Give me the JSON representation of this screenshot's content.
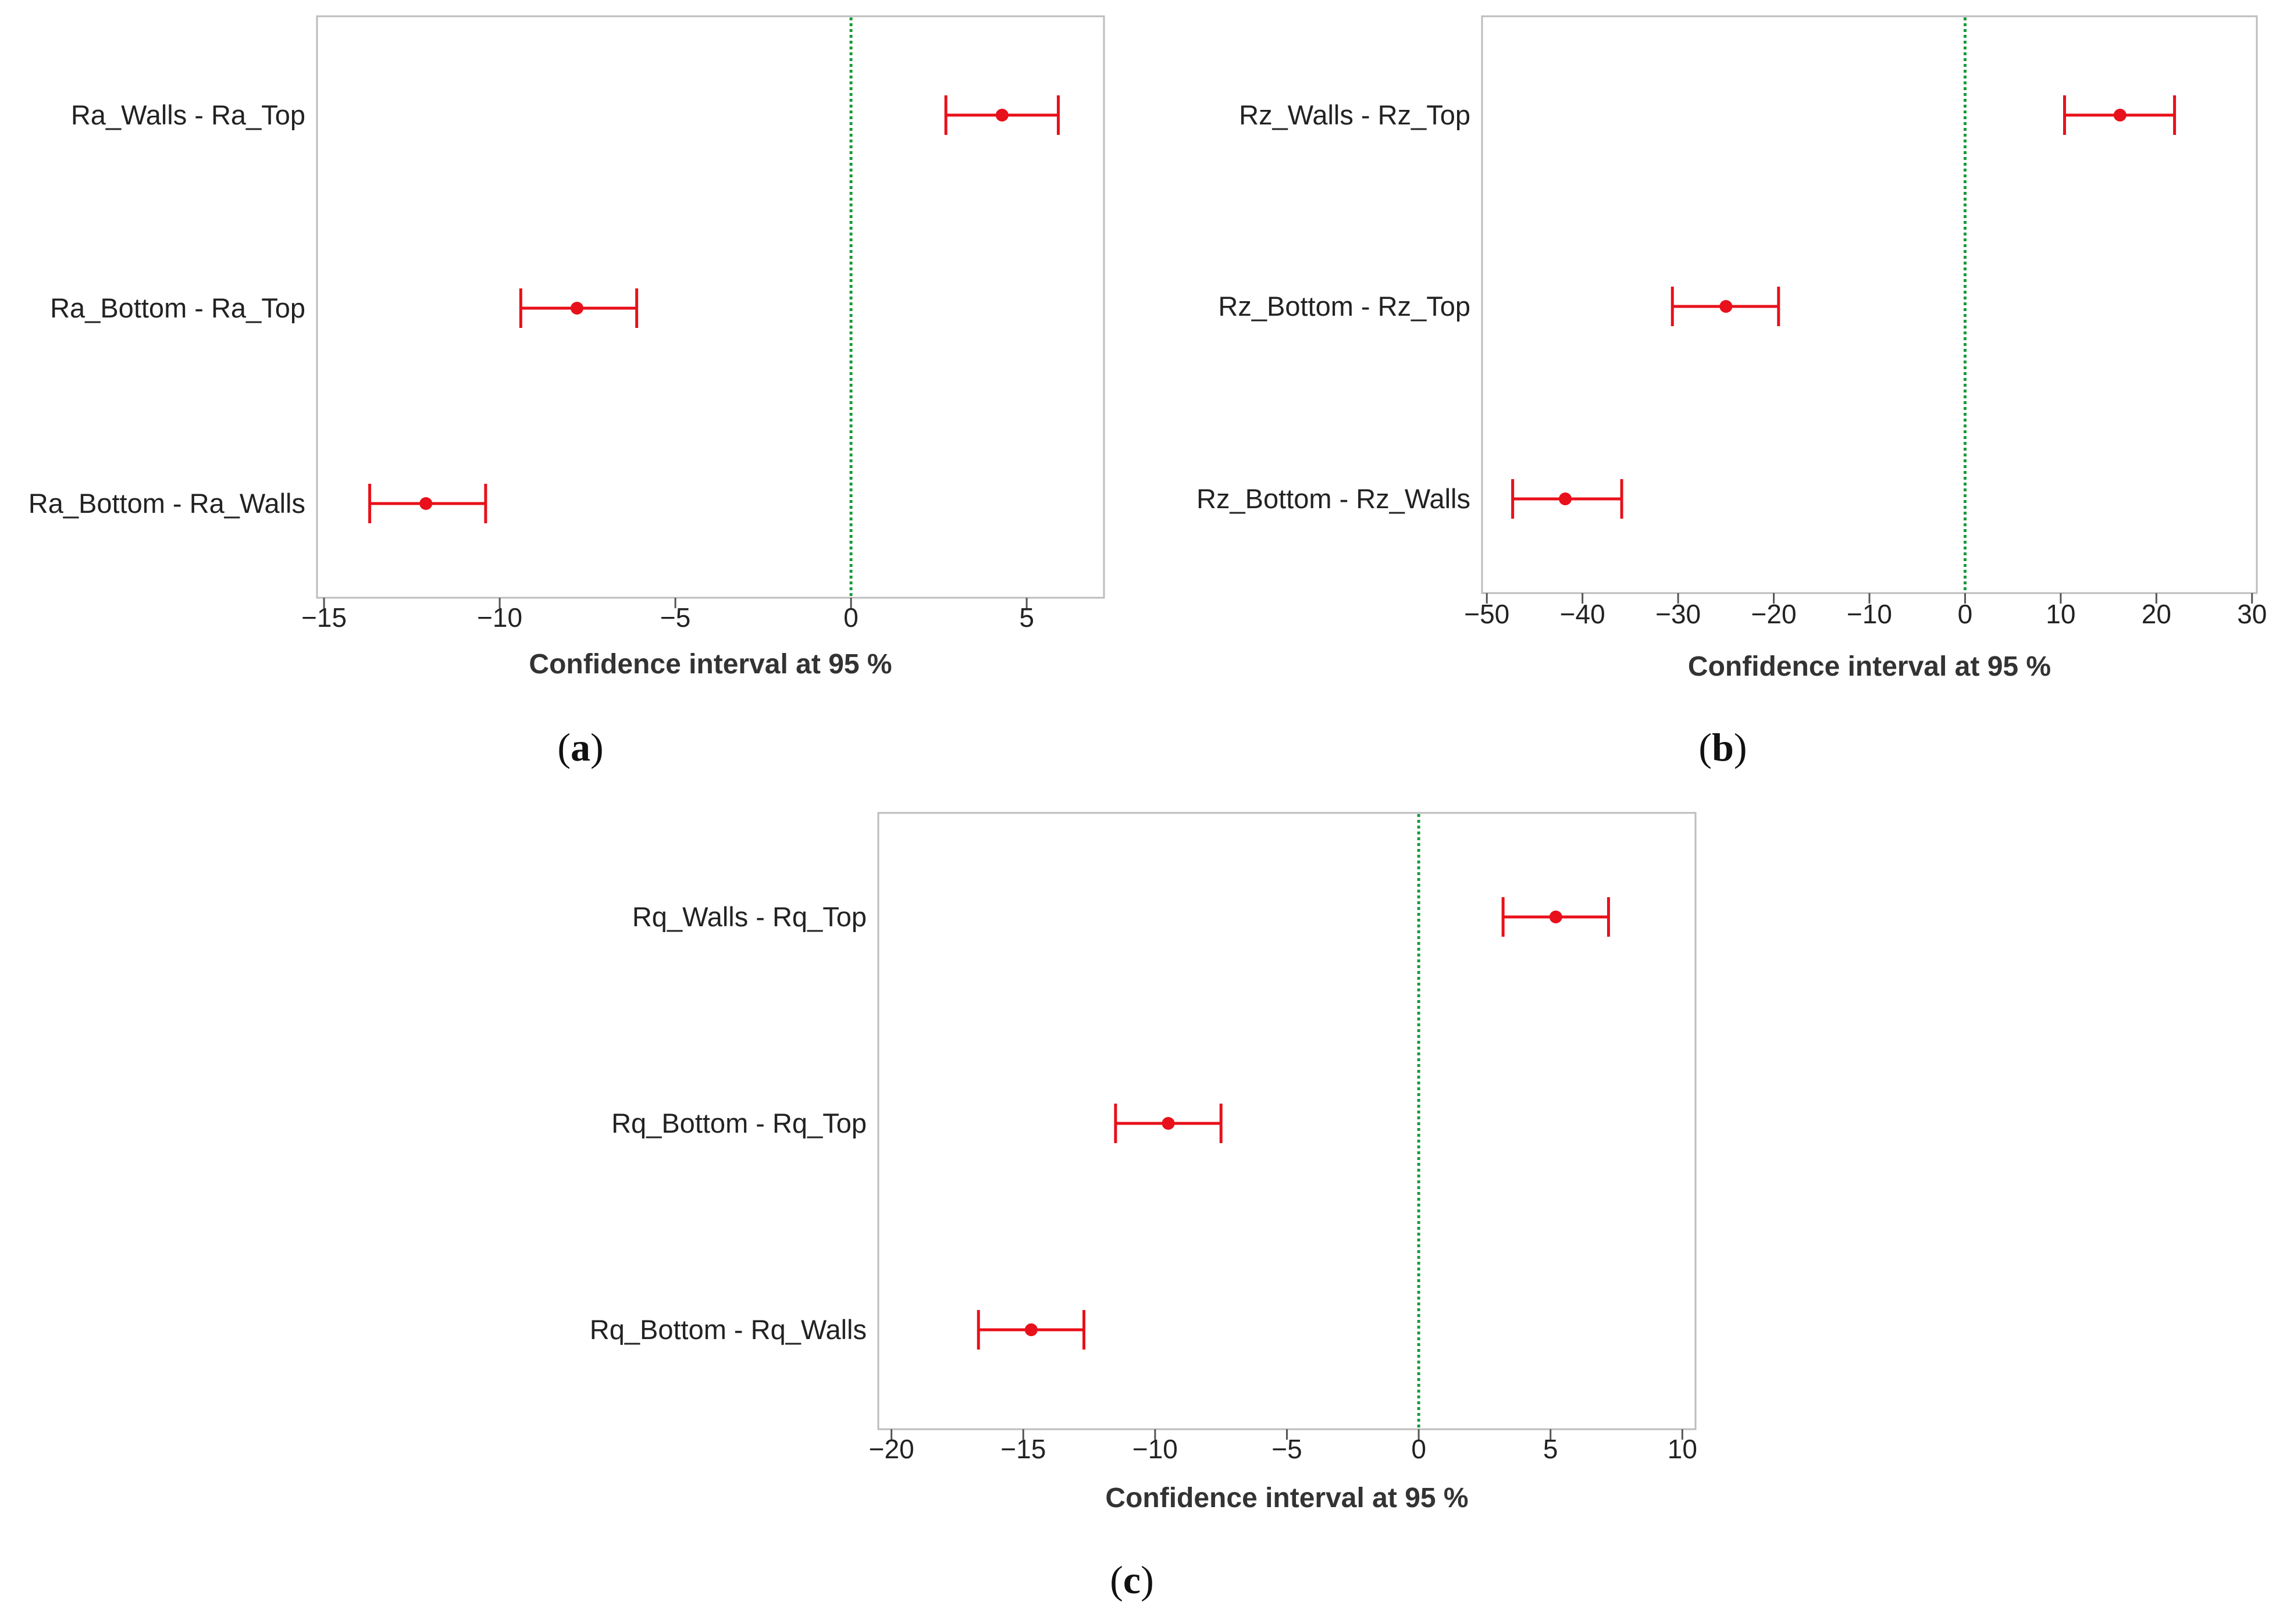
{
  "colors": {
    "interval": "#e8101a",
    "reference_line": "#1a9a3a",
    "frame": "#bdbdbd",
    "text": "#222222",
    "axis_title": "#333333"
  },
  "chart_data": [
    {
      "type": "interval",
      "panel_label": "a",
      "xlabel": "Confidence interval at 95 %",
      "xlim": [
        -15.2,
        7.2
      ],
      "xticks": [
        -15,
        -10,
        -5,
        0,
        5
      ],
      "reference_x": 0,
      "categories": [
        "Ra_Walls - Ra_Top",
        "Ra_Bottom - Ra_Top",
        "Ra_Bottom - Ra_Walls"
      ],
      "estimates": [
        4.3,
        -7.8,
        -12.1
      ],
      "lower": [
        2.7,
        -9.4,
        -13.7
      ],
      "upper": [
        5.9,
        -6.1,
        -10.4
      ]
    },
    {
      "type": "interval",
      "panel_label": "b",
      "xlabel": "Confidence interval at 95 %",
      "xlim": [
        -50.5,
        30.5
      ],
      "xticks": [
        -50,
        -40,
        -30,
        -20,
        -10,
        0,
        10,
        20,
        30
      ],
      "reference_x": 0,
      "categories": [
        "Rz_Walls - Rz_Top",
        "Rz_Bottom - Rz_Top",
        "Rz_Bottom - Rz_Walls"
      ],
      "estimates": [
        16.2,
        -25.0,
        -41.8
      ],
      "lower": [
        10.4,
        -30.6,
        -47.3
      ],
      "upper": [
        21.9,
        -19.5,
        -35.9
      ]
    },
    {
      "type": "interval",
      "panel_label": "c",
      "xlabel": "Confidence interval at 95 %",
      "xlim": [
        -20.5,
        10.5
      ],
      "xticks": [
        -20,
        -15,
        -10,
        -5,
        0,
        5,
        10
      ],
      "reference_x": 0,
      "categories": [
        "Rq_Walls - Rq_Top",
        "Rq_Bottom - Rq_Top",
        "Rq_Bottom - Rq_Walls"
      ],
      "estimates": [
        5.2,
        -9.5,
        -14.7
      ],
      "lower": [
        3.2,
        -11.5,
        -16.7
      ],
      "upper": [
        7.2,
        -7.5,
        -12.7
      ]
    }
  ]
}
